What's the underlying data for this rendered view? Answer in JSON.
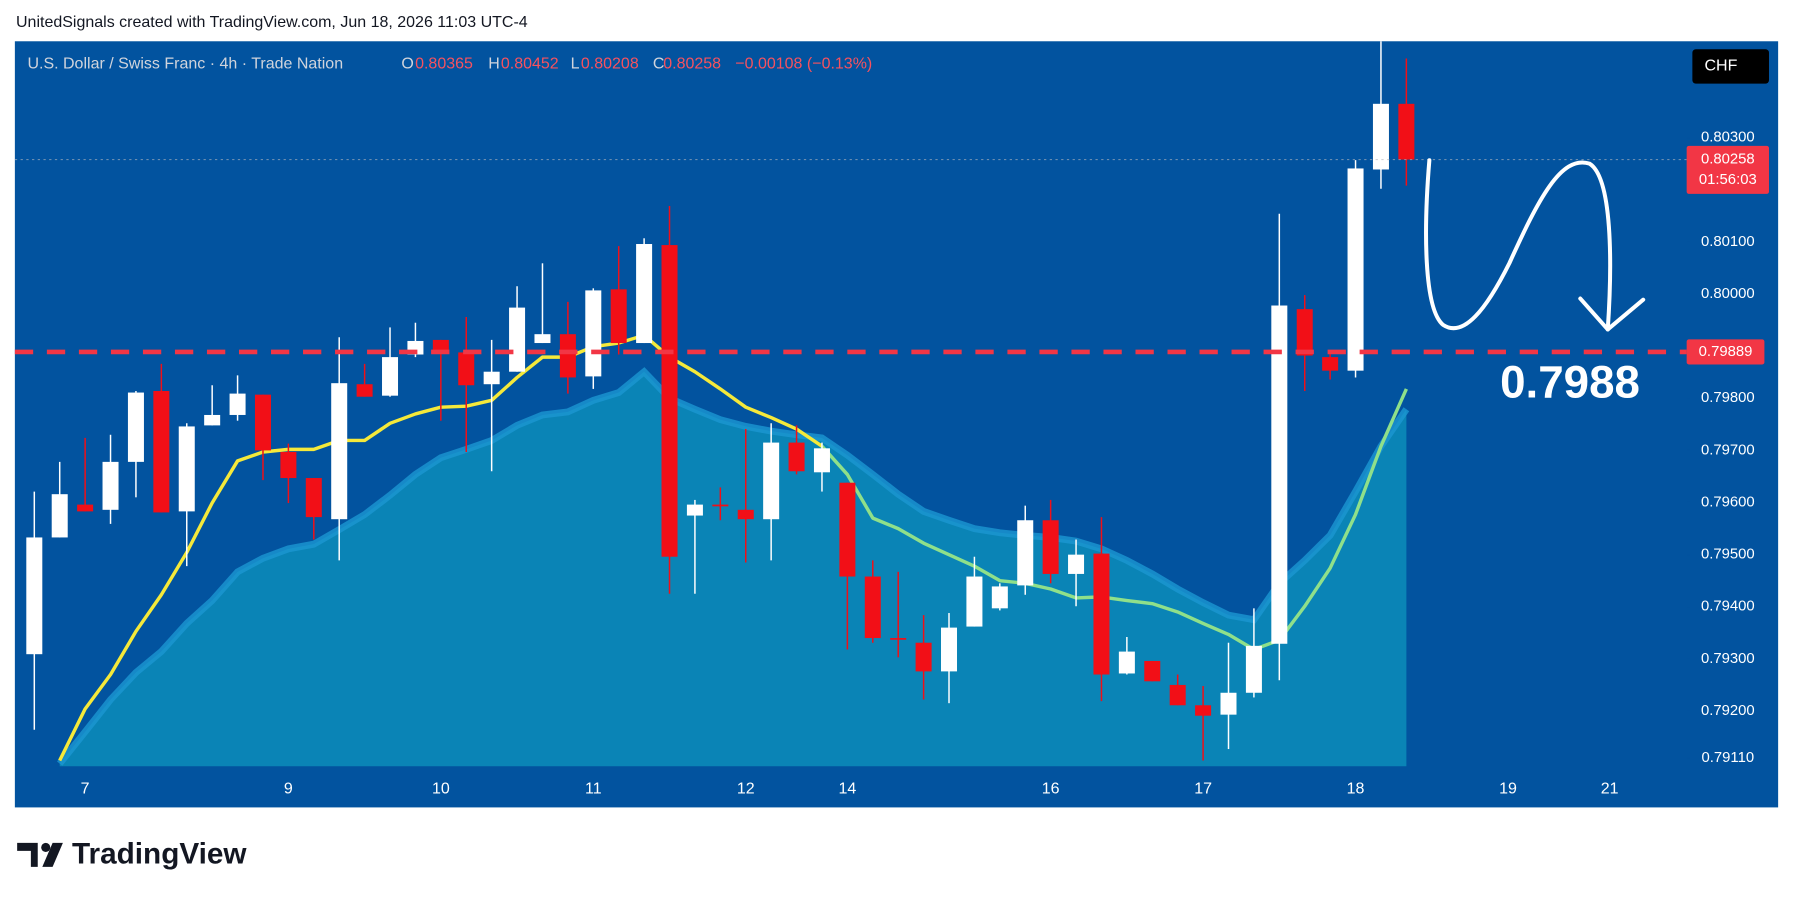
{
  "header": {
    "text": "UnitedSignals created with TradingView.com, Jun 18, 2026 11:03 UTC-4"
  },
  "legend": {
    "symbol": "U.S. Dollar / Swiss Franc · 4h · Trade Nation",
    "o_label": "O",
    "o_value": "0.80365",
    "h_label": "H",
    "h_value": "0.80452",
    "l_label": "L",
    "l_value": "0.80208",
    "c_label": "C",
    "c_value": "0.80258",
    "change": "−0.00108 (−0.13%)"
  },
  "footer": {
    "brand": "TradingView"
  },
  "chart_data": {
    "type": "candlestick",
    "categories": [
      null,
      null,
      "7",
      null,
      null,
      null,
      null,
      null,
      null,
      null,
      "9",
      null,
      null,
      null,
      null,
      null,
      "10",
      null,
      null,
      null,
      null,
      null,
      "11",
      null,
      null,
      null,
      null,
      null,
      "12",
      null,
      null,
      null,
      "14",
      null,
      null,
      null,
      null,
      null,
      null,
      null,
      "16",
      null,
      null,
      null,
      null,
      null,
      "17",
      null,
      null,
      null,
      null,
      null,
      "18",
      null,
      null,
      null,
      null,
      null,
      "19",
      null,
      null,
      null,
      "21",
      null
    ],
    "open": [
      0.79309,
      0.79533,
      0.79596,
      0.79586,
      0.79678,
      0.79814,
      0.79583,
      0.79748,
      0.79768,
      0.79807,
      0.79697,
      0.79647,
      0.79568,
      0.79827,
      0.79805,
      0.79884,
      0.79912,
      0.79888,
      0.79827,
      0.79851,
      0.79906,
      0.79923,
      0.79842,
      0.80009,
      0.79906,
      0.80094,
      0.79575,
      0.79596,
      0.79586,
      0.79568,
      0.79715,
      0.79658,
      0.79638,
      0.79458,
      0.7934,
      0.79331,
      0.79276,
      0.79362,
      0.79397,
      0.79441,
      0.79566,
      0.79463,
      0.79502,
      0.79272,
      0.79296,
      0.7925,
      0.79211,
      0.79193,
      0.79235,
      0.79329,
      0.79971,
      0.79879,
      0.79853,
      0.80239,
      0.80365,
      null,
      null,
      null,
      null,
      null,
      null,
      null,
      null,
      null
    ],
    "high": [
      0.79621,
      0.79678,
      0.79724,
      0.7973,
      0.79814,
      0.79866,
      0.79752,
      0.79825,
      0.79844,
      0.79807,
      0.79713,
      0.79647,
      0.79917,
      0.79866,
      0.79936,
      0.79945,
      0.79912,
      0.79956,
      0.79912,
      0.80015,
      0.80059,
      0.79985,
      0.80011,
      0.80092,
      0.80107,
      0.80169,
      0.79605,
      0.79629,
      0.79741,
      0.79752,
      0.79748,
      0.79715,
      0.79638,
      0.79489,
      0.79467,
      0.79384,
      0.79388,
      0.79496,
      0.79445,
      0.79594,
      0.79605,
      0.79529,
      0.79572,
      0.79342,
      0.79296,
      0.7927,
      0.79248,
      0.79331,
      0.79397,
      0.80154,
      0.79998,
      0.79888,
      0.80257,
      0.80485,
      0.80452,
      null,
      null,
      null,
      null,
      null,
      null,
      null,
      null,
      null
    ],
    "low": [
      0.79164,
      0.79533,
      0.79583,
      0.79559,
      0.7961,
      0.79581,
      0.79478,
      0.79748,
      0.79757,
      0.79643,
      0.79599,
      0.79529,
      0.79489,
      0.79803,
      0.79803,
      0.79879,
      0.79757,
      0.79697,
      0.7966,
      0.79851,
      0.79906,
      0.79809,
      0.79818,
      0.79884,
      0.79906,
      0.79425,
      0.79425,
      0.79566,
      0.79485,
      0.79489,
      0.79654,
      0.79621,
      0.79318,
      0.79331,
      0.79303,
      0.79222,
      0.79215,
      0.79362,
      0.79393,
      0.79423,
      0.79445,
      0.79401,
      0.79219,
      0.7927,
      0.79257,
      0.79211,
      0.79105,
      0.79127,
      0.79226,
      0.79259,
      0.79814,
      0.79836,
      0.7984,
      0.80202,
      0.80208,
      null,
      null,
      null,
      null,
      null,
      null,
      null,
      null,
      null
    ],
    "close": [
      0.79533,
      0.79616,
      0.79583,
      0.79678,
      0.79811,
      0.79581,
      0.79746,
      0.79768,
      0.79809,
      0.797,
      0.79647,
      0.79572,
      0.79829,
      0.79803,
      0.79879,
      0.7991,
      0.79888,
      0.79825,
      0.79851,
      0.79974,
      0.79923,
      0.7984,
      0.80007,
      0.79906,
      0.80096,
      0.79496,
      0.79596,
      0.79594,
      0.79568,
      0.79715,
      0.7966,
      0.79704,
      0.79458,
      0.7934,
      0.79338,
      0.79276,
      0.7936,
      0.79458,
      0.79439,
      0.79566,
      0.79463,
      0.795,
      0.7927,
      0.79314,
      0.79257,
      0.79211,
      0.79191,
      0.79235,
      0.79325,
      0.79978,
      0.79882,
      0.79853,
      0.80241,
      0.80365,
      0.80258,
      null,
      null,
      null,
      null,
      null,
      null,
      null,
      null,
      null
    ],
    "up_color": "#ffffff",
    "down_color": "#f20f17",
    "ylim": [
      0.79094,
      0.80485
    ],
    "yticks": [
      {
        "value": 0.7911,
        "label": "0.79110"
      },
      {
        "value": 0.792,
        "label": "0.79200"
      },
      {
        "value": 0.793,
        "label": "0.79300"
      },
      {
        "value": 0.794,
        "label": "0.79400"
      },
      {
        "value": 0.795,
        "label": "0.79500"
      },
      {
        "value": 0.796,
        "label": "0.79600"
      },
      {
        "value": 0.797,
        "label": "0.79700"
      },
      {
        "value": 0.798,
        "label": "0.79800"
      },
      {
        "value": 0.8,
        "label": "0.80000"
      },
      {
        "value": 0.801,
        "label": "0.80100"
      },
      {
        "value": 0.803,
        "label": "0.80300"
      }
    ],
    "grid": false,
    "lines": [
      {
        "color": "#f5e93a",
        "values": [
          null,
          0.79105,
          0.79204,
          0.7927,
          0.79353,
          0.79423,
          0.79504,
          0.79599,
          0.7968,
          0.79697,
          0.79702,
          0.79702,
          0.79719,
          0.79719,
          0.79752,
          0.7977,
          0.79783,
          0.79785,
          0.79796,
          0.7984,
          0.79879,
          0.79879,
          0.79899,
          0.79906,
          0.79921,
          0.79879,
          0.79851,
          0.79818,
          0.79783,
          0.79763,
          0.79741,
          0.79708,
          null,
          null,
          null,
          null,
          null,
          null,
          null,
          null,
          null,
          null,
          null,
          null,
          null,
          null,
          null,
          null,
          null,
          null,
          null,
          null,
          null,
          null,
          null,
          null,
          null,
          null,
          null,
          null,
          null,
          null,
          null,
          null
        ]
      },
      {
        "color": "#8fe08a",
        "values": [
          null,
          null,
          null,
          null,
          null,
          null,
          null,
          null,
          null,
          null,
          null,
          null,
          null,
          null,
          null,
          null,
          null,
          null,
          null,
          null,
          null,
          null,
          null,
          null,
          null,
          null,
          null,
          null,
          null,
          null,
          null,
          0.79708,
          0.79654,
          0.7957,
          0.7955,
          0.79522,
          0.795,
          0.79478,
          0.7945,
          0.79445,
          0.79434,
          0.79417,
          0.79419,
          0.79412,
          0.79406,
          0.7939,
          0.79368,
          0.79347,
          0.79318,
          0.79336,
          0.79401,
          0.79474,
          0.79577,
          0.79708,
          0.79818,
          null,
          null,
          null,
          null,
          null,
          null,
          null,
          null,
          null
        ]
      }
    ],
    "area": {
      "color": "#0a84b6",
      "edge_color": "#1b97d2",
      "values": [
        null,
        0.79099,
        0.7916,
        0.79222,
        0.79274,
        0.79314,
        0.79368,
        0.79412,
        0.79467,
        0.79493,
        0.79511,
        0.7952,
        0.79548,
        0.79577,
        0.79614,
        0.79654,
        0.79686,
        0.79702,
        0.79719,
        0.79748,
        0.79768,
        0.79774,
        0.79796,
        0.79811,
        0.79851,
        0.798,
        0.79779,
        0.79759,
        0.79746,
        0.79737,
        0.7973,
        0.79724,
        0.79691,
        0.79654,
        0.79616,
        0.79583,
        0.79566,
        0.7955,
        0.79542,
        0.79537,
        0.79533,
        0.79526,
        0.79511,
        0.79489,
        0.79463,
        0.79434,
        0.79408,
        0.79384,
        0.79375,
        0.79445,
        0.79489,
        0.79537,
        0.79621,
        0.79708,
        0.79779,
        null,
        null,
        null,
        null,
        null,
        null,
        null,
        null,
        null
      ]
    },
    "hline": {
      "value": 0.79889,
      "color": "#f23645"
    },
    "last_price": {
      "value": 0.80258,
      "countdown": "01:56:03",
      "color": "#f23645"
    },
    "annotation": "0.7988",
    "currency": "CHF"
  }
}
